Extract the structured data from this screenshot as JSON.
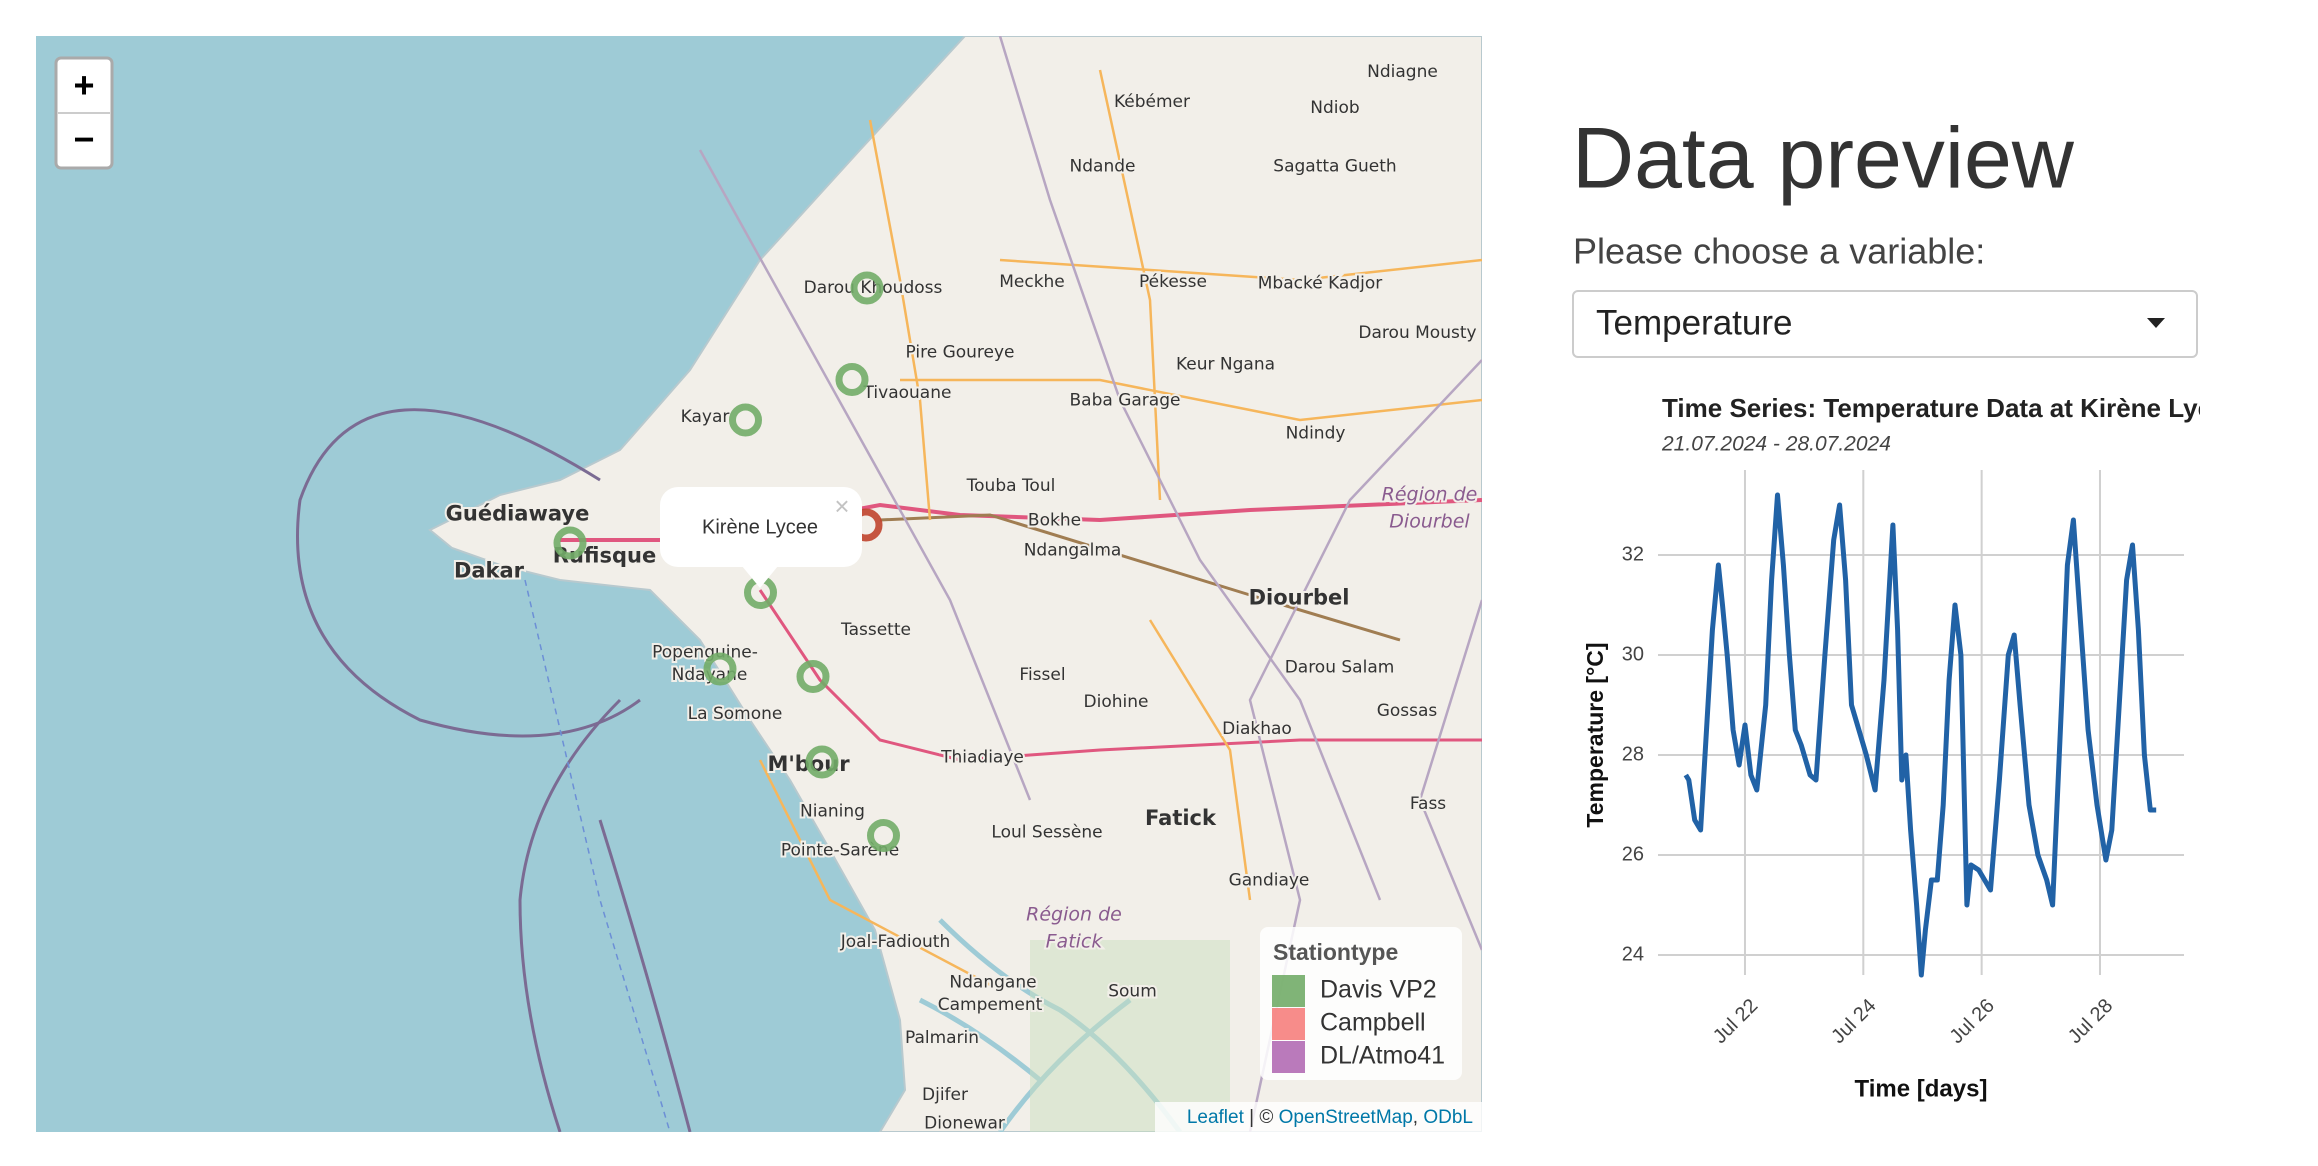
{
  "map": {
    "zoom_in": "+",
    "zoom_out": "−",
    "places": [
      "Ndiagne",
      "Kébémer",
      "Ndiob",
      "Ndande",
      "Sagatta Gueth",
      "Darou Khoudoss",
      "Meckhe",
      "Pékesse",
      "Mbacké Kadjor",
      "Darou Mousty",
      "Pire Goureye",
      "Keur Ngana",
      "Tivaouane",
      "Baba Garage",
      "Kayar",
      "Ndindy",
      "Touba Toul",
      "Guédiawaye",
      "Bokhe",
      "Dakar",
      "Rufisque",
      "Ndangalma",
      "Diourbel",
      "Tassette",
      "Popenguine-",
      "Ndayane",
      "Fissel",
      "Darou Salam",
      "Diohine",
      "Gossas",
      "La Somone",
      "Diakhao",
      "M'bour",
      "Thiadiaye",
      "Nianing",
      "Fatick",
      "Fass",
      "Loul Sessène",
      "Pointe-Sarène",
      "Gandiaye",
      "Joal-Fadiouth",
      "Ndangane",
      "Soum",
      "Campement",
      "Palmarin",
      "Djifer",
      "Dionewar"
    ],
    "regions": [
      "Région de",
      "Diourbel",
      "Région de",
      "Fatick"
    ],
    "popup": {
      "text": "Kirène Lycee",
      "close": "×"
    },
    "legend": {
      "title": "Stationtype",
      "items": [
        {
          "name": "Davis VP2",
          "color": "#72ac68"
        },
        {
          "name": "Campbell",
          "color": "#f67f7d"
        },
        {
          "name": "DL/Atmo41",
          "color": "#b26cb4"
        }
      ]
    },
    "attribution": {
      "leaflet": "Leaflet",
      "sep": " | © ",
      "osm": "OpenStreetMap",
      "comma": ", ",
      "odbl": "ODbL"
    }
  },
  "panel": {
    "heading": "Data preview",
    "label": "Please choose a variable:",
    "selected": "Temperature"
  },
  "chart_data": {
    "type": "line",
    "title": "Time Series: Temperature Data at Kirène Lycee",
    "subtitle": "21.07.2024 - 28.07.2024",
    "x_label": "Time [days]",
    "y_label": "Temperature [°C]",
    "xlim": [
      20.53,
      29.42
    ],
    "ylim": [
      23.6,
      33.7
    ],
    "xticks": [
      {
        "value": 22,
        "label": "Jul 22"
      },
      {
        "value": 24,
        "label": "Jul 24"
      },
      {
        "value": 26,
        "label": "Jul 26"
      },
      {
        "value": 28,
        "label": "Jul 28"
      }
    ],
    "yticks": [
      24,
      26,
      28,
      30,
      32
    ],
    "grid": true,
    "series": [
      {
        "name": "Temperature",
        "color": "#2162a6",
        "x": [
          21.0,
          21.05,
          21.15,
          21.25,
          21.35,
          21.45,
          21.55,
          21.62,
          21.7,
          21.8,
          21.9,
          22.0,
          22.1,
          22.2,
          22.35,
          22.45,
          22.55,
          22.65,
          22.75,
          22.85,
          22.95,
          23.1,
          23.2,
          23.35,
          23.5,
          23.6,
          23.7,
          23.8,
          23.95,
          24.05,
          24.2,
          24.35,
          24.5,
          24.58,
          24.65,
          24.72,
          24.8,
          24.9,
          24.98,
          25.05,
          25.15,
          25.25,
          25.35,
          25.45,
          25.55,
          25.65,
          25.75,
          25.82,
          25.95,
          26.05,
          26.15,
          26.3,
          26.45,
          26.55,
          26.65,
          26.8,
          26.95,
          27.1,
          27.2,
          27.35,
          27.45,
          27.55,
          27.65,
          27.8,
          27.95,
          28.1,
          28.2,
          28.35,
          28.45,
          28.55,
          28.65,
          28.75,
          28.85,
          28.95
        ],
        "values": [
          27.6,
          27.5,
          26.7,
          26.5,
          28.5,
          30.5,
          31.8,
          31.0,
          30.0,
          28.5,
          27.8,
          28.6,
          27.6,
          27.3,
          29.0,
          31.5,
          33.2,
          31.8,
          30.0,
          28.5,
          28.2,
          27.6,
          27.5,
          30.0,
          32.3,
          33.0,
          31.5,
          29.0,
          28.4,
          28.0,
          27.3,
          29.5,
          32.6,
          30.5,
          27.5,
          28.0,
          26.5,
          25.0,
          23.6,
          24.5,
          25.5,
          25.5,
          27.0,
          29.5,
          31.0,
          30.0,
          25.0,
          25.8,
          25.7,
          25.5,
          25.3,
          27.5,
          30.0,
          30.4,
          29.0,
          27.0,
          26.0,
          25.5,
          25.0,
          29.0,
          31.8,
          32.7,
          31.0,
          28.5,
          27.0,
          25.9,
          26.5,
          29.5,
          31.5,
          32.2,
          30.5,
          28.0,
          26.9,
          26.9
        ]
      }
    ]
  }
}
